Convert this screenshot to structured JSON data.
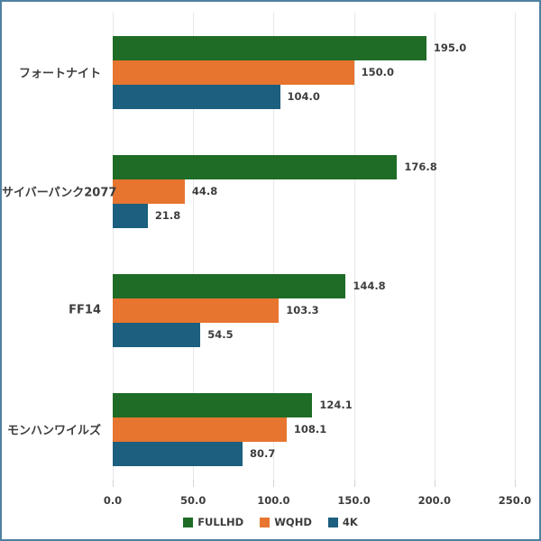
{
  "chart_data": {
    "type": "bar",
    "orientation": "horizontal",
    "title": "",
    "xlabel": "",
    "ylabel": "",
    "categories": [
      "フォートナイト",
      "サイバーパンク2077",
      "FF14",
      "モンハンワイルズ"
    ],
    "series": [
      {
        "name": "FULLHD",
        "color": "#1e6c26",
        "values": [
          195.0,
          176.8,
          144.8,
          124.1
        ],
        "value_labels": [
          "195.0",
          "176.8",
          "144.8",
          "124.1"
        ]
      },
      {
        "name": "WQHD",
        "color": "#e7752f",
        "values": [
          150.0,
          44.8,
          103.3,
          108.1
        ],
        "value_labels": [
          "150.0",
          "44.8",
          "103.3",
          "108.1"
        ]
      },
      {
        "name": "4K",
        "color": "#1c5f7e",
        "values": [
          104.0,
          21.8,
          54.5,
          80.7
        ],
        "value_labels": [
          "104.0",
          "21.8",
          "54.5",
          "80.7"
        ]
      }
    ],
    "xlim": [
      0,
      250
    ],
    "xticks": [
      {
        "value": 0,
        "label": "0.0"
      },
      {
        "value": 50,
        "label": "50.0"
      },
      {
        "value": 100,
        "label": "100.0"
      },
      {
        "value": 150,
        "label": "150.0"
      },
      {
        "value": 200,
        "label": "200.0"
      },
      {
        "value": 250,
        "label": "250.0"
      }
    ],
    "grid": "vertical",
    "legend_position": "bottom-center",
    "colors": {
      "background": "#ffffff",
      "frame_border": "#4f81a1",
      "text": "#3d3d3d",
      "gridline": "#e7e7e7",
      "tick": "#d4d4d4"
    }
  }
}
